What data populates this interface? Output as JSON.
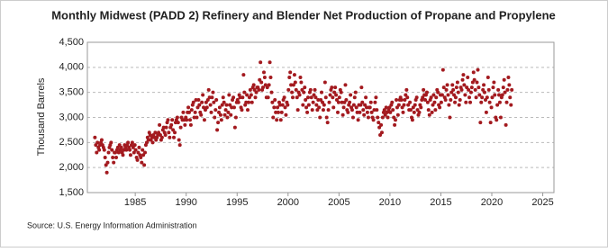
{
  "chart_data": {
    "type": "scatter",
    "title": "Monthly Midwest (PADD 2) Refinery and Blender Net Production of Propane and Propylene",
    "ylabel": "Thousand Barrels",
    "source": "Source: U.S. Energy Information Administration",
    "xlim": [
      1980.3,
      2026.1
    ],
    "xticks": [
      1985,
      1990,
      1995,
      2000,
      2005,
      2010,
      2015,
      2020,
      2025
    ],
    "ylim": [
      1500,
      4500
    ],
    "yticks": [
      {
        "value": 1500,
        "label": "1,500"
      },
      {
        "value": 2000,
        "label": "2,000"
      },
      {
        "value": 2500,
        "label": "2,500"
      },
      {
        "value": 3000,
        "label": "3,000"
      },
      {
        "value": 3500,
        "label": "3,500"
      },
      {
        "value": 4000,
        "label": "4,000"
      },
      {
        "value": 4500,
        "label": "4,500"
      }
    ],
    "grid": true,
    "series": [
      {
        "color": "#a31a1f",
        "x": [
          1981.04,
          1981.13,
          1981.21,
          1981.29,
          1981.38,
          1981.46,
          1981.54,
          1981.63,
          1981.71,
          1981.79,
          1981.88,
          1981.96,
          1982.04,
          1982.13,
          1982.21,
          1982.29,
          1982.38,
          1982.46,
          1982.54,
          1982.63,
          1982.71,
          1982.79,
          1982.88,
          1982.96,
          1983.04,
          1983.13,
          1983.21,
          1983.29,
          1983.38,
          1983.46,
          1983.54,
          1983.63,
          1983.71,
          1983.79,
          1983.88,
          1983.96,
          1984.04,
          1984.13,
          1984.21,
          1984.29,
          1984.38,
          1984.46,
          1984.54,
          1984.63,
          1984.71,
          1984.79,
          1984.88,
          1984.96,
          1985.04,
          1985.13,
          1985.21,
          1985.29,
          1985.38,
          1985.46,
          1985.54,
          1985.63,
          1985.71,
          1985.79,
          1985.88,
          1985.96,
          1986.04,
          1986.13,
          1986.21,
          1986.29,
          1986.38,
          1986.46,
          1986.54,
          1986.63,
          1986.71,
          1986.79,
          1986.88,
          1986.96,
          1987.04,
          1987.13,
          1987.21,
          1987.29,
          1987.38,
          1987.46,
          1987.54,
          1987.63,
          1987.71,
          1987.79,
          1987.88,
          1987.96,
          1988.04,
          1988.13,
          1988.21,
          1988.29,
          1988.38,
          1988.46,
          1988.54,
          1988.63,
          1988.71,
          1988.79,
          1988.88,
          1988.96,
          1989.04,
          1989.13,
          1989.21,
          1989.29,
          1989.38,
          1989.46,
          1989.54,
          1989.63,
          1989.71,
          1989.79,
          1989.88,
          1989.96,
          1990.04,
          1990.13,
          1990.21,
          1990.29,
          1990.38,
          1990.46,
          1990.54,
          1990.63,
          1990.71,
          1990.79,
          1990.88,
          1990.96,
          1991.04,
          1991.13,
          1991.21,
          1991.29,
          1991.38,
          1991.46,
          1991.54,
          1991.63,
          1991.71,
          1991.79,
          1991.88,
          1991.96,
          1992.04,
          1992.13,
          1992.21,
          1992.29,
          1992.38,
          1992.46,
          1992.54,
          1992.63,
          1992.71,
          1992.79,
          1992.88,
          1992.96,
          1993.04,
          1993.13,
          1993.21,
          1993.29,
          1993.38,
          1993.46,
          1993.54,
          1993.63,
          1993.71,
          1993.79,
          1993.88,
          1993.96,
          1994.04,
          1994.13,
          1994.21,
          1994.29,
          1994.38,
          1994.46,
          1994.54,
          1994.63,
          1994.71,
          1994.79,
          1994.88,
          1994.96,
          1995.04,
          1995.13,
          1995.21,
          1995.29,
          1995.38,
          1995.46,
          1995.54,
          1995.63,
          1995.71,
          1995.79,
          1995.88,
          1995.96,
          1996.04,
          1996.13,
          1996.21,
          1996.29,
          1996.38,
          1996.46,
          1996.54,
          1996.63,
          1996.71,
          1996.79,
          1996.88,
          1996.96,
          1997.04,
          1997.13,
          1997.21,
          1997.29,
          1997.38,
          1997.46,
          1997.54,
          1997.63,
          1997.71,
          1997.79,
          1997.88,
          1997.96,
          1998.04,
          1998.13,
          1998.21,
          1998.29,
          1998.38,
          1998.46,
          1998.54,
          1998.63,
          1998.71,
          1998.79,
          1998.88,
          1998.96,
          1999.04,
          1999.13,
          1999.21,
          1999.29,
          1999.38,
          1999.46,
          1999.54,
          1999.63,
          1999.71,
          1999.79,
          1999.88,
          1999.96,
          2000.04,
          2000.13,
          2000.21,
          2000.29,
          2000.38,
          2000.46,
          2000.54,
          2000.63,
          2000.71,
          2000.79,
          2000.88,
          2000.96,
          2001.04,
          2001.13,
          2001.21,
          2001.29,
          2001.38,
          2001.46,
          2001.54,
          2001.63,
          2001.71,
          2001.79,
          2001.88,
          2001.96,
          2002.04,
          2002.13,
          2002.21,
          2002.29,
          2002.38,
          2002.46,
          2002.54,
          2002.63,
          2002.71,
          2002.79,
          2002.88,
          2002.96,
          2003.04,
          2003.13,
          2003.21,
          2003.29,
          2003.38,
          2003.46,
          2003.54,
          2003.63,
          2003.71,
          2003.79,
          2003.88,
          2003.96,
          2004.04,
          2004.13,
          2004.21,
          2004.29,
          2004.38,
          2004.46,
          2004.54,
          2004.63,
          2004.71,
          2004.79,
          2004.88,
          2004.96,
          2005.04,
          2005.13,
          2005.21,
          2005.29,
          2005.38,
          2005.46,
          2005.54,
          2005.63,
          2005.71,
          2005.79,
          2005.88,
          2005.96,
          2006.04,
          2006.13,
          2006.21,
          2006.29,
          2006.38,
          2006.46,
          2006.54,
          2006.63,
          2006.71,
          2006.79,
          2006.88,
          2006.96,
          2007.04,
          2007.13,
          2007.21,
          2007.29,
          2007.38,
          2007.46,
          2007.54,
          2007.63,
          2007.71,
          2007.79,
          2007.88,
          2007.96,
          2008.04,
          2008.13,
          2008.21,
          2008.29,
          2008.38,
          2008.46,
          2008.54,
          2008.63,
          2008.71,
          2008.79,
          2008.88,
          2008.96,
          2009.04,
          2009.13,
          2009.21,
          2009.29,
          2009.38,
          2009.46,
          2009.54,
          2009.63,
          2009.71,
          2009.79,
          2009.88,
          2009.96,
          2010.04,
          2010.13,
          2010.21,
          2010.29,
          2010.38,
          2010.46,
          2010.54,
          2010.63,
          2010.71,
          2010.79,
          2010.88,
          2010.96,
          2011.04,
          2011.13,
          2011.21,
          2011.29,
          2011.38,
          2011.46,
          2011.54,
          2011.63,
          2011.71,
          2011.79,
          2011.88,
          2011.96,
          2012.04,
          2012.13,
          2012.21,
          2012.29,
          2012.38,
          2012.46,
          2012.54,
          2012.63,
          2012.71,
          2012.79,
          2012.88,
          2012.96,
          2013.04,
          2013.13,
          2013.21,
          2013.29,
          2013.38,
          2013.46,
          2013.54,
          2013.63,
          2013.71,
          2013.79,
          2013.88,
          2013.96,
          2014.04,
          2014.13,
          2014.21,
          2014.29,
          2014.38,
          2014.46,
          2014.54,
          2014.63,
          2014.71,
          2014.79,
          2014.88,
          2014.96,
          2015.04,
          2015.13,
          2015.21,
          2015.29,
          2015.38,
          2015.46,
          2015.54,
          2015.63,
          2015.71,
          2015.79,
          2015.88,
          2015.96,
          2016.04,
          2016.13,
          2016.21,
          2016.29,
          2016.38,
          2016.46,
          2016.54,
          2016.63,
          2016.71,
          2016.79,
          2016.88,
          2016.96,
          2017.04,
          2017.13,
          2017.21,
          2017.29,
          2017.38,
          2017.46,
          2017.54,
          2017.63,
          2017.71,
          2017.79,
          2017.88,
          2017.96,
          2018.04,
          2018.13,
          2018.21,
          2018.29,
          2018.38,
          2018.46,
          2018.54,
          2018.63,
          2018.71,
          2018.79,
          2018.88,
          2018.96,
          2019.04,
          2019.13,
          2019.21,
          2019.29,
          2019.38,
          2019.46,
          2019.54,
          2019.63,
          2019.71,
          2019.79,
          2019.88,
          2019.96,
          2020.04,
          2020.13,
          2020.21,
          2020.29,
          2020.38,
          2020.46,
          2020.54,
          2020.63,
          2020.71,
          2020.79,
          2020.88,
          2020.96,
          2021.04,
          2021.13,
          2021.21,
          2021.29,
          2021.38,
          2021.46,
          2021.54,
          2021.63,
          2021.71,
          2021.79,
          2021.88,
          2021.96
        ],
        "values": [
          2600,
          2450,
          2300,
          2500,
          2400,
          2350,
          2450,
          2500,
          2550,
          2450,
          2400,
          2350,
          2200,
          2050,
          1900,
          2100,
          2300,
          2400,
          2450,
          2500,
          2350,
          2200,
          2100,
          2300,
          2300,
          2200,
          2350,
          2400,
          2300,
          2450,
          2350,
          2400,
          2300,
          2250,
          2350,
          2450,
          2400,
          2350,
          2450,
          2500,
          2400,
          2350,
          2250,
          2450,
          2500,
          2400,
          2300,
          2450,
          2350,
          2200,
          2150,
          2300,
          2400,
          2250,
          2200,
          2100,
          2350,
          2250,
          2050,
          2300,
          2450,
          2500,
          2600,
          2550,
          2700,
          2650,
          2550,
          2600,
          2500,
          2650,
          2600,
          2700,
          2550,
          2600,
          2650,
          2700,
          2850,
          2650,
          2550,
          2600,
          2750,
          2800,
          2700,
          2650,
          2800,
          2900,
          2950,
          2700,
          2600,
          2800,
          2850,
          2950,
          2750,
          2600,
          2700,
          2900,
          2950,
          3000,
          2900,
          2550,
          2450,
          2800,
          3000,
          2950,
          3100,
          2950,
          2850,
          3000,
          2950,
          3100,
          3200,
          3100,
          2950,
          2850,
          3150,
          3250,
          3300,
          3000,
          3100,
          3350,
          3000,
          3200,
          3350,
          3250,
          3100,
          3050,
          3300,
          3450,
          3200,
          2950,
          3150,
          3300,
          3200,
          3350,
          3550,
          3400,
          3250,
          3100,
          3400,
          3500,
          3300,
          3000,
          3150,
          3350,
          2750,
          2900,
          3100,
          3200,
          3050,
          2950,
          3250,
          3400,
          3300,
          3050,
          3150,
          3250,
          3000,
          3100,
          3450,
          3250,
          3050,
          3200,
          3350,
          3400,
          3200,
          2800,
          3000,
          3300,
          3350,
          3300,
          3450,
          3400,
          3200,
          3150,
          3400,
          3850,
          3500,
          3250,
          3300,
          3450,
          3150,
          3300,
          3400,
          3550,
          3450,
          3300,
          3600,
          3650,
          3550,
          3400,
          3500,
          3600,
          3600,
          3550,
          3750,
          4100,
          3700,
          3550,
          3600,
          3900,
          3800,
          3650,
          3400,
          3600,
          3400,
          3650,
          4100,
          3800,
          3500,
          3300,
          3000,
          3200,
          3350,
          3100,
          2950,
          3200,
          3100,
          3300,
          3250,
          2950,
          3100,
          3250,
          3350,
          3400,
          3200,
          3050,
          3300,
          3250,
          3550,
          3800,
          3900,
          3650,
          3500,
          3400,
          3650,
          3850,
          3700,
          3550,
          3400,
          3150,
          3500,
          3450,
          3800,
          3700,
          3550,
          3250,
          3500,
          3600,
          3350,
          3200,
          3100,
          3400,
          3250,
          3500,
          3550,
          3400,
          3150,
          3300,
          3450,
          3550,
          3400,
          3250,
          3150,
          3350,
          3200,
          3000,
          3350,
          3500,
          3300,
          3150,
          3250,
          3700,
          3400,
          3000,
          2900,
          3150,
          3300,
          3450,
          3550,
          3600,
          3400,
          3200,
          3500,
          3600,
          3450,
          3350,
          3100,
          3300,
          3400,
          3550,
          3500,
          3300,
          3050,
          3200,
          3300,
          3650,
          3350,
          3150,
          3100,
          3250,
          3300,
          3450,
          3200,
          3150,
          3000,
          3250,
          3400,
          3500,
          3200,
          3100,
          2950,
          3250,
          3100,
          3250,
          3600,
          3300,
          3150,
          3050,
          3250,
          3400,
          3200,
          3100,
          3000,
          3200,
          3200,
          3300,
          3100,
          3000,
          2950,
          3150,
          3300,
          3400,
          3150,
          3000,
          2900,
          2800,
          2650,
          2850,
          2700,
          3000,
          3100,
          3150,
          3050,
          3200,
          3100,
          3000,
          3150,
          3200,
          3100,
          3250,
          3300,
          3150,
          3000,
          2850,
          2950,
          3350,
          3200,
          3050,
          3250,
          3350,
          3400,
          3350,
          3200,
          3100,
          3250,
          3350,
          3450,
          3550,
          3400,
          3250,
          3150,
          3300,
          3150,
          3000,
          2950,
          3200,
          3100,
          3250,
          3350,
          3400,
          3150,
          3050,
          3100,
          3250,
          3200,
          3350,
          3400,
          3550,
          3450,
          3350,
          3450,
          3500,
          3300,
          3150,
          3050,
          3350,
          3400,
          3100,
          3250,
          3450,
          3300,
          3150,
          3400,
          3550,
          3500,
          3250,
          3200,
          3450,
          3300,
          3450,
          3950,
          3600,
          3400,
          3350,
          3550,
          3650,
          3450,
          3250,
          3000,
          3350,
          3500,
          3650,
          3550,
          3450,
          3300,
          3400,
          3600,
          3700,
          3500,
          3250,
          3350,
          3600,
          3550,
          3750,
          3850,
          3650,
          3450,
          3300,
          3600,
          3800,
          3550,
          3400,
          3300,
          3500,
          3600,
          3700,
          3900,
          3750,
          3550,
          3400,
          3700,
          3950,
          3600,
          3450,
          2900,
          3300,
          3400,
          3550,
          3650,
          3500,
          3350,
          3100,
          3400,
          3800,
          3550,
          3300,
          2900,
          3200,
          3400,
          3600,
          3700,
          3450,
          3000,
          2950,
          3250,
          3550,
          3450,
          3300,
          3000,
          3400,
          3450,
          3600,
          3750,
          3500,
          2850,
          3300,
          3550,
          3800,
          3650,
          3400,
          3250,
          3550
        ]
      }
    ]
  }
}
